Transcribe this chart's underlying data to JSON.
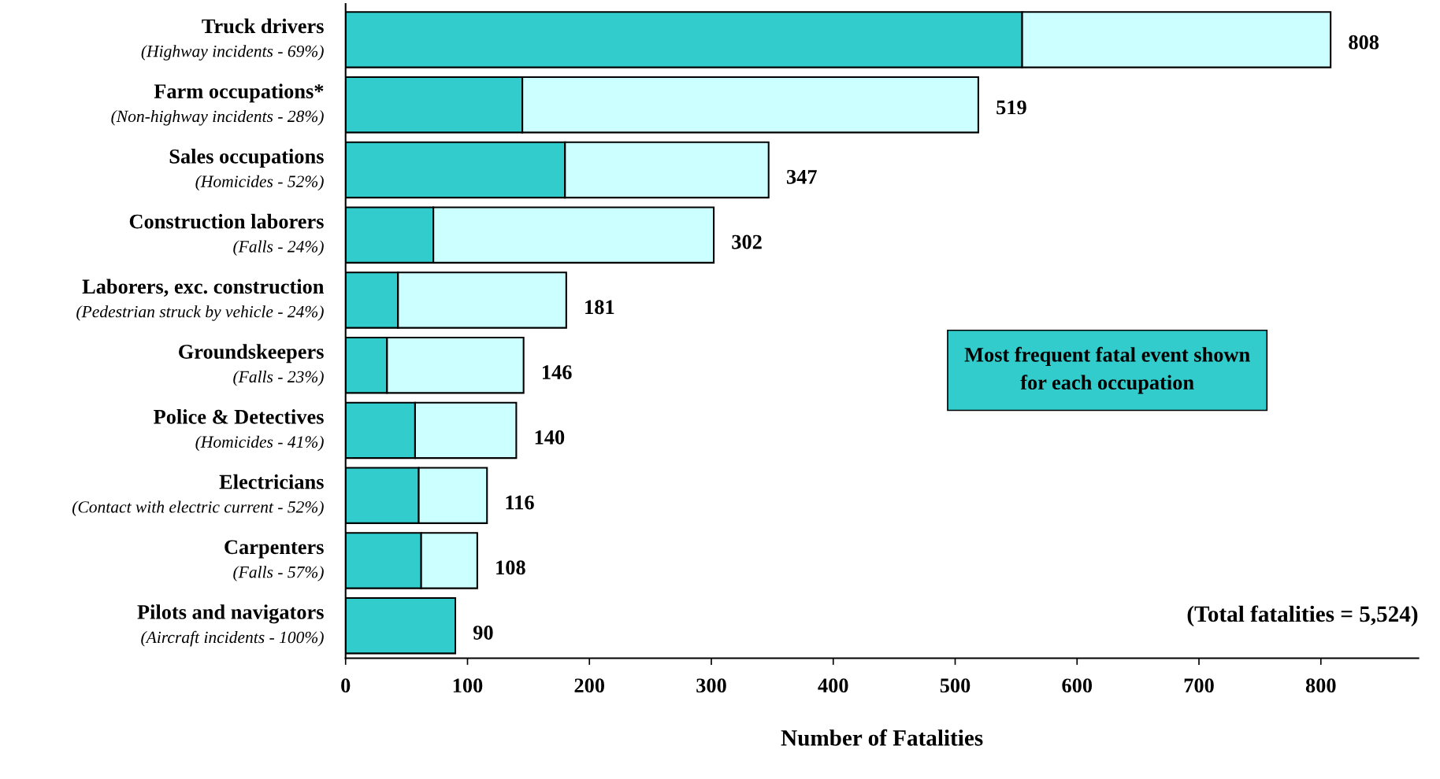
{
  "chart_data": {
    "type": "bar",
    "orientation": "horizontal",
    "stacked": true,
    "categories": [
      "Truck drivers\n(Highway incidents - 69%)",
      "Farm occupations*\n(Non-highway incidents - 28%)",
      "Sales occupations\n(Homicides - 52%)",
      "Construction laborers\n(Falls - 24%)",
      "Laborers, exc. construction\n(Pedestrian struck by vehicle - 24%)",
      "Groundskeepers\n(Falls - 23%)",
      "Police & Detectives\n(Homicides - 41%)",
      "Electricians\n(Contact with electric current - 52%)",
      "Carpenters\n(Falls - 57%)",
      "Pilots and navigators\n(Aircraft incidents - 100%)"
    ],
    "series": [
      {
        "color": "#33cccc",
        "values": [
          555,
          145,
          180,
          72,
          43,
          34,
          57,
          60,
          62,
          90
        ]
      },
      {
        "color": "#ccffff",
        "values": [
          253,
          374,
          167,
          230,
          138,
          112,
          83,
          56,
          46,
          null
        ]
      }
    ],
    "totals": [
      "808",
      "519",
      "347",
      "302",
      "181",
      "146",
      "140",
      "116",
      "108",
      "90"
    ],
    "xlim": [
      0,
      880
    ],
    "xticks": [
      0,
      100,
      200,
      300,
      400,
      500,
      600,
      700,
      800
    ],
    "xlabel": "Number of Fatalities",
    "grid": false,
    "legend": false,
    "annotations": [
      "Most frequent fatal event shown\nfor each occupation",
      "(Total fatalities = 5,524)"
    ]
  }
}
